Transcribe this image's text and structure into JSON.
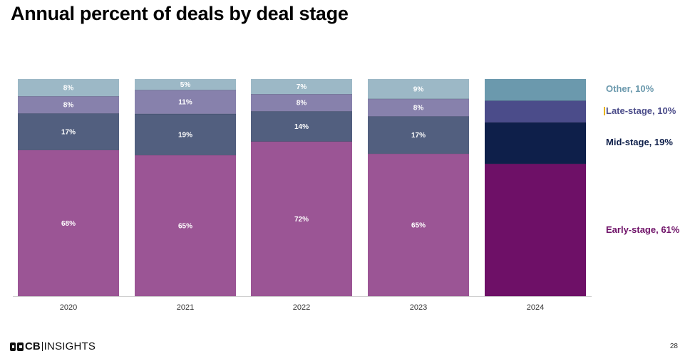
{
  "title": "Annual percent of deals by deal stage",
  "footer": {
    "logo_cb": "CB",
    "logo_insights": "INSIGHTS",
    "page_number": "28"
  },
  "chart_data": {
    "type": "bar",
    "stacked": true,
    "title": "Annual percent of deals by deal stage",
    "categories": [
      "2020",
      "2021",
      "2022",
      "2023",
      "2024"
    ],
    "series": [
      {
        "name": "Early-stage",
        "values": [
          68,
          65,
          72,
          65,
          61
        ],
        "labels": [
          "68%",
          "65%",
          "72%",
          "65%",
          ""
        ],
        "colors": [
          "#9b5595",
          "#9b5595",
          "#9b5595",
          "#9b5595",
          "#6e1067"
        ]
      },
      {
        "name": "Mid-stage",
        "values": [
          17,
          19,
          14,
          17,
          19
        ],
        "labels": [
          "17%",
          "19%",
          "14%",
          "17%",
          ""
        ],
        "colors": [
          "#525f7f",
          "#525f7f",
          "#525f7f",
          "#525f7f",
          "#0e1f4a"
        ]
      },
      {
        "name": "Late-stage",
        "values": [
          8,
          11,
          8,
          8,
          10
        ],
        "labels": [
          "8%",
          "11%",
          "8%",
          "8%",
          ""
        ],
        "colors": [
          "#8781ac",
          "#8781ac",
          "#8781ac",
          "#8781ac",
          "#4b4c8a"
        ]
      },
      {
        "name": "Other",
        "values": [
          8,
          5,
          7,
          9,
          10
        ],
        "labels": [
          "8%",
          "5%",
          "7%",
          "9%",
          ""
        ],
        "colors": [
          "#9cb8c6",
          "#9cb8c6",
          "#9cb8c6",
          "#9cb8c6",
          "#6b99ad"
        ]
      }
    ],
    "legend": [
      {
        "label": "Other, 10%",
        "color": "#6b99ad"
      },
      {
        "label": "Late-stage, 10%",
        "color": "#4b4c8a"
      },
      {
        "label": "Mid-stage, 19%",
        "color": "#0e1f4a"
      },
      {
        "label": "Early-stage, 61%",
        "color": "#6e1067"
      }
    ],
    "legend_position": "right",
    "ylim": [
      0,
      100
    ],
    "grid": false
  }
}
